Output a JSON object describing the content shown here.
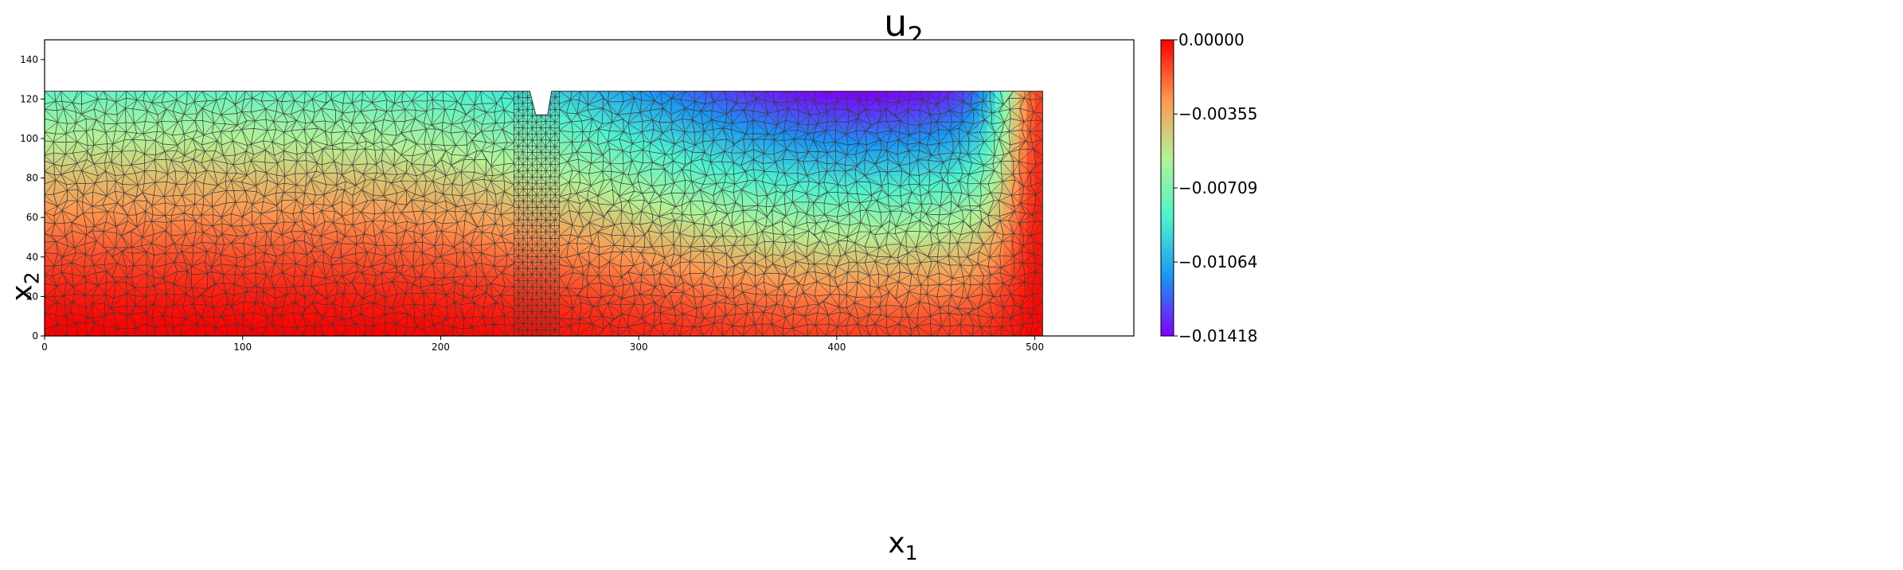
{
  "chart_data": {
    "type": "heatmap",
    "title_base": "u",
    "title_sub": "2",
    "xlabel_base": "x",
    "xlabel_sub": "1",
    "ylabel_base": "x",
    "ylabel_sub": "2",
    "xlim": [
      0,
      550
    ],
    "ylim": [
      0,
      150
    ],
    "xticks": [
      0,
      100,
      200,
      300,
      400,
      500
    ],
    "yticks": [
      0,
      20,
      40,
      60,
      80,
      100,
      120,
      140
    ],
    "colormap": "rainbow",
    "colorbar": {
      "min": -0.01418,
      "max": 0.0,
      "ticks": [
        "0.00000",
        "−0.00355",
        "−0.00709",
        "−0.01064",
        "−0.01418"
      ],
      "tick_values": [
        0.0,
        -0.00355,
        -0.00709,
        -0.01064,
        -0.01418
      ]
    },
    "domain_outline": [
      [
        0,
        0
      ],
      [
        504,
        0
      ],
      [
        504,
        124
      ],
      [
        256,
        124
      ],
      [
        254,
        112
      ],
      [
        248,
        112
      ],
      [
        245,
        124
      ],
      [
        0,
        124
      ]
    ],
    "notch": {
      "x_range": [
        245,
        256
      ],
      "bottom_y": 112
    },
    "refined_band_x": [
      237,
      260
    ],
    "field_minimum": {
      "x": 415,
      "y": 118,
      "value": -0.01418
    }
  },
  "colors": {
    "colormap_stops": [
      "#8000ff",
      "#1996f3",
      "#4df3ce",
      "#b2f396",
      "#ff964f",
      "#ff0000"
    ],
    "mesh_edge": "#3a3a3a",
    "axes": "#000000"
  }
}
